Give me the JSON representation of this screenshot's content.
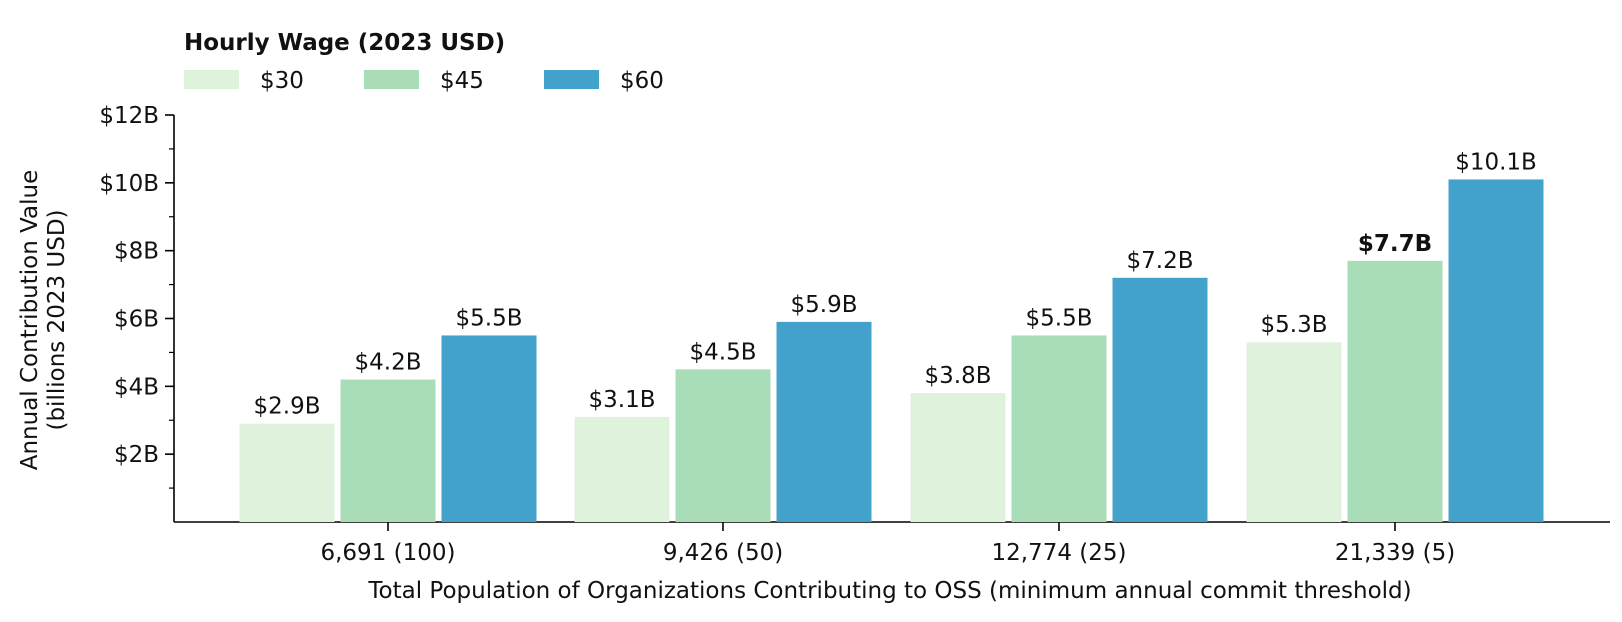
{
  "chart_data": {
    "type": "bar",
    "categories": [
      "6,691 (100)",
      "9,426 (50)",
      "12,774 (25)",
      "21,339 (5)"
    ],
    "series": [
      {
        "name": "$30",
        "color": "#dff2dc",
        "values": [
          2.9,
          3.1,
          3.8,
          5.3
        ],
        "labels": [
          "$2.9B",
          "$3.1B",
          "$3.8B",
          "$5.3B"
        ]
      },
      {
        "name": "$45",
        "color": "#a9ddb8",
        "values": [
          4.2,
          4.5,
          5.5,
          7.7
        ],
        "labels": [
          "$4.2B",
          "$4.5B",
          "$5.5B",
          "$7.7B"
        ]
      },
      {
        "name": "$60",
        "color": "#43a2cb",
        "values": [
          5.5,
          5.9,
          7.2,
          10.1
        ],
        "labels": [
          "$5.5B",
          "$5.9B",
          "$7.2B",
          "$10.1B"
        ]
      }
    ],
    "highlighted_label": {
      "series": 1,
      "category": 3
    },
    "legend_title": "Hourly Wage (2023 USD)",
    "legend_placement": "top-left",
    "xlabel": "Total Population of Organizations Contributing to OSS (minimum annual commit threshold)",
    "ylabel": [
      "Annual Contribution Value",
      "(billions 2023 USD)"
    ],
    "ylim": [
      0,
      12
    ],
    "yticks": [
      2,
      4,
      6,
      8,
      10,
      12
    ],
    "ytick_labels": [
      "$2B",
      "$4B",
      "$6B",
      "$8B",
      "$10B",
      "$12B"
    ],
    "y_minor_ticks": [
      1,
      3,
      5,
      7,
      9,
      11
    ],
    "grid": false
  }
}
